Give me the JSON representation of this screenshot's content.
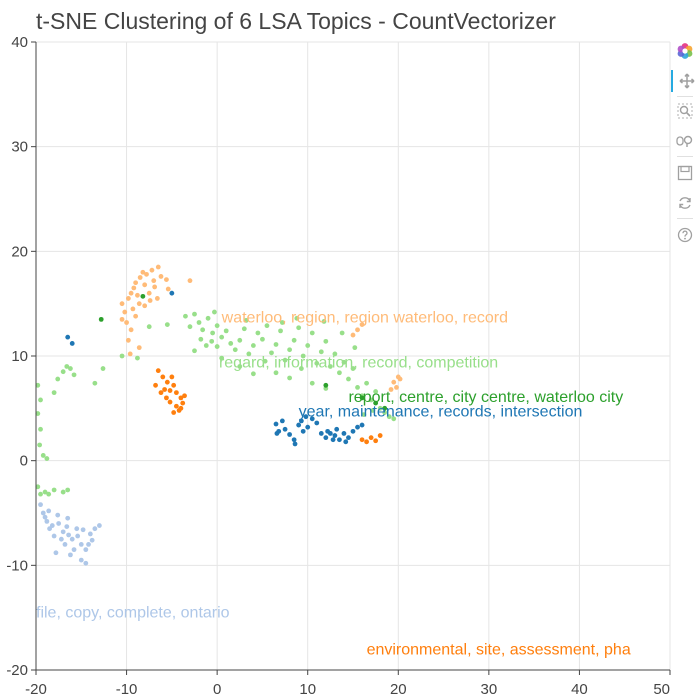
{
  "colors": {
    "orange": "#ff7f0e",
    "light_orange": "#ffbb78",
    "green": "#2ca02c",
    "light_green": "#98df8a",
    "blue": "#1f77b4",
    "light_blue": "#aec7e8",
    "grid": "#e5e5e5",
    "axis": "#444444"
  },
  "toolbar": {
    "logo": "bokeh-logo-icon",
    "tools": [
      "pan-icon",
      "box-zoom-icon",
      "wheel-zoom-icon",
      "save-icon",
      "reset-icon",
      "help-icon"
    ]
  },
  "chart_data": {
    "type": "scatter",
    "title": "t-SNE Clustering of 6 LSA Topics - CountVectorizer",
    "xlabel": "",
    "ylabel": "",
    "xlim": [
      -20,
      50
    ],
    "ylim": [
      -20,
      40
    ],
    "grid": true,
    "x_ticks": [
      "-20",
      "-10",
      "0",
      "10",
      "20",
      "30",
      "40",
      "50"
    ],
    "y_ticks": [
      "-20",
      "-10",
      "0",
      "10",
      "20",
      "30",
      "40"
    ],
    "annotations": [
      {
        "text": "waterloo, region, region waterloo, record",
        "x": 0.5,
        "y": 13.2,
        "color": "#ffbb78"
      },
      {
        "text": "regard, information, record, competition",
        "x": 0.2,
        "y": 8.9,
        "color": "#98df8a"
      },
      {
        "text": "report, centre, city centre, waterloo city",
        "x": 14.5,
        "y": 5.6,
        "color": "#2ca02c"
      },
      {
        "text": "year, maintenance, records, intersection",
        "x": 9.0,
        "y": 4.2,
        "color": "#1f77b4"
      },
      {
        "text": "file, copy, complete, ontario",
        "x": -20.0,
        "y": -15.0,
        "color": "#aec7e8"
      },
      {
        "text": "environmental, site, assessment, pha",
        "x": 16.5,
        "y": -18.5,
        "color": "#ff7f0e"
      }
    ],
    "series": [
      {
        "color": "#98df8a",
        "points": [
          [
            -19.8,
            7.2
          ],
          [
            -19.5,
            5.8
          ],
          [
            -19.8,
            4.5
          ],
          [
            -19.5,
            3.0
          ],
          [
            -19.2,
            0.5
          ],
          [
            -19.8,
            -2.5
          ],
          [
            -19.5,
            -3.2
          ],
          [
            -19.0,
            -3.0
          ],
          [
            -18.6,
            -3.2
          ],
          [
            -18.0,
            -2.8
          ],
          [
            -17.0,
            -3.0
          ],
          [
            -16.5,
            -2.8
          ],
          [
            -18.0,
            6.5
          ],
          [
            -17.6,
            7.8
          ],
          [
            -17.0,
            8.5
          ],
          [
            -16.6,
            9.0
          ],
          [
            -16.2,
            8.8
          ],
          [
            -15.8,
            8.2
          ],
          [
            -13.5,
            7.4
          ],
          [
            -12.6,
            8.8
          ],
          [
            -10.5,
            10.0
          ],
          [
            -8.8,
            9.8
          ],
          [
            -7.5,
            12.8
          ],
          [
            -5.5,
            13.0
          ],
          [
            -3.5,
            13.8
          ],
          [
            -3.0,
            12.8
          ],
          [
            -2.5,
            14.0
          ],
          [
            -2.0,
            13.2
          ],
          [
            -1.6,
            12.5
          ],
          [
            -1.0,
            13.6
          ],
          [
            -0.5,
            12.2
          ],
          [
            0.0,
            12.9
          ],
          [
            -1.8,
            11.6
          ],
          [
            -1.2,
            11.0
          ],
          [
            -0.6,
            11.4
          ],
          [
            0.0,
            10.9
          ],
          [
            0.5,
            11.8
          ],
          [
            1.0,
            12.4
          ],
          [
            1.5,
            11.2
          ],
          [
            2.0,
            10.6
          ],
          [
            2.5,
            11.5
          ],
          [
            3.0,
            12.6
          ],
          [
            3.5,
            10.2
          ],
          [
            4.0,
            11.0
          ],
          [
            4.5,
            12.2
          ],
          [
            5.0,
            11.6
          ],
          [
            5.5,
            12.9
          ],
          [
            6.0,
            10.3
          ],
          [
            6.5,
            11.1
          ],
          [
            7.0,
            12.4
          ],
          [
            7.5,
            9.6
          ],
          [
            8.0,
            10.6
          ],
          [
            8.5,
            11.5
          ],
          [
            9.0,
            12.7
          ],
          [
            9.5,
            10.0
          ],
          [
            10.0,
            11.0
          ],
          [
            10.5,
            12.2
          ],
          [
            11.0,
            9.3
          ],
          [
            11.5,
            10.4
          ],
          [
            12.0,
            11.4
          ],
          [
            12.5,
            9.0
          ],
          [
            13.0,
            10.2
          ],
          [
            13.5,
            8.4
          ],
          [
            14.0,
            9.4
          ],
          [
            14.5,
            7.8
          ],
          [
            15.0,
            8.8
          ],
          [
            15.5,
            7.0
          ],
          [
            16.0,
            6.2
          ],
          [
            16.5,
            7.4
          ],
          [
            17.0,
            5.8
          ],
          [
            17.5,
            6.6
          ],
          [
            18.0,
            5.0
          ],
          [
            18.5,
            4.6
          ],
          [
            19.0,
            4.2
          ],
          [
            19.5,
            4.0
          ],
          [
            16.2,
            4.4
          ],
          [
            17.2,
            4.8
          ],
          [
            6.5,
            8.4
          ],
          [
            8.0,
            7.9
          ],
          [
            10.5,
            7.4
          ],
          [
            12.0,
            6.9
          ],
          [
            2.5,
            9.0
          ],
          [
            4.0,
            8.3
          ],
          [
            0.5,
            9.8
          ],
          [
            -2.5,
            10.5
          ],
          [
            3.2,
            13.4
          ],
          [
            -0.3,
            14.2
          ],
          [
            8.8,
            13.6
          ],
          [
            11.8,
            13.3
          ],
          [
            13.8,
            12.2
          ],
          [
            15.2,
            10.8
          ],
          [
            9.3,
            8.8
          ],
          [
            5.3,
            9.5
          ],
          [
            7.2,
            13.2
          ],
          [
            -19.6,
            1.5
          ],
          [
            -18.8,
            0.2
          ]
        ]
      },
      {
        "color": "#ffbb78",
        "points": [
          [
            -10.2,
            14.2
          ],
          [
            -10.0,
            13.2
          ],
          [
            -9.8,
            15.5
          ],
          [
            -9.5,
            16.0
          ],
          [
            -9.2,
            16.5
          ],
          [
            -9.0,
            17.0
          ],
          [
            -8.8,
            15.8
          ],
          [
            -8.5,
            17.5
          ],
          [
            -8.2,
            18.0
          ],
          [
            -8.0,
            16.8
          ],
          [
            -7.8,
            17.8
          ],
          [
            -7.5,
            16.0
          ],
          [
            -7.2,
            18.2
          ],
          [
            -7.0,
            17.2
          ],
          [
            -6.6,
            15.5
          ],
          [
            -6.5,
            18.5
          ],
          [
            -9.5,
            12.5
          ],
          [
            -9.8,
            11.5
          ],
          [
            -9.3,
            14.5
          ],
          [
            -8.6,
            15.0
          ],
          [
            -7.4,
            15.3
          ],
          [
            -6.9,
            16.6
          ],
          [
            -6.2,
            17.6
          ],
          [
            -3.0,
            17.2
          ],
          [
            -8.0,
            14.8
          ],
          [
            -9.0,
            13.8
          ],
          [
            -10.5,
            15.0
          ],
          [
            -8.6,
            10.8
          ],
          [
            -9.6,
            10.2
          ],
          [
            -5.4,
            16.4
          ],
          [
            -5.6,
            17.3
          ],
          [
            -10.5,
            13.5
          ],
          [
            15.5,
            12.5
          ],
          [
            15.0,
            12.0
          ],
          [
            16.0,
            13.0
          ],
          [
            19.5,
            7.5
          ],
          [
            20.0,
            8.0
          ],
          [
            19.8,
            7.0
          ],
          [
            20.2,
            7.8
          ],
          [
            19.2,
            6.8
          ]
        ]
      },
      {
        "color": "#2ca02c",
        "points": [
          [
            -12.8,
            13.5
          ],
          [
            -8.2,
            15.7
          ],
          [
            12.0,
            7.2
          ],
          [
            16.0,
            6.0
          ],
          [
            17.5,
            5.5
          ],
          [
            18.5,
            5.0
          ]
        ]
      },
      {
        "color": "#ff7f0e",
        "points": [
          [
            -6.5,
            8.6
          ],
          [
            -6.0,
            8.0
          ],
          [
            -5.5,
            7.5
          ],
          [
            -5.0,
            8.0
          ],
          [
            -4.8,
            7.2
          ],
          [
            -6.8,
            7.2
          ],
          [
            -5.8,
            6.8
          ],
          [
            -4.5,
            6.5
          ],
          [
            -4.0,
            6.0
          ],
          [
            -5.2,
            5.6
          ],
          [
            -4.5,
            5.2
          ],
          [
            -4.2,
            4.8
          ],
          [
            -3.8,
            5.5
          ],
          [
            -3.6,
            6.2
          ],
          [
            -4.8,
            4.6
          ],
          [
            -5.6,
            6.0
          ],
          [
            -6.2,
            6.5
          ],
          [
            -5.2,
            6.7
          ],
          [
            -4.0,
            5.0
          ],
          [
            16.0,
            2.0
          ],
          [
            16.5,
            1.8
          ],
          [
            17.0,
            2.2
          ],
          [
            17.5,
            1.9
          ],
          [
            18.0,
            2.4
          ]
        ]
      },
      {
        "color": "#1f77b4",
        "points": [
          [
            -16.5,
            11.8
          ],
          [
            -16.0,
            11.2
          ],
          [
            -5.0,
            16.0
          ],
          [
            6.5,
            3.5
          ],
          [
            6.6,
            2.6
          ],
          [
            6.8,
            2.8
          ],
          [
            7.2,
            3.8
          ],
          [
            7.5,
            3.0
          ],
          [
            8.0,
            2.5
          ],
          [
            8.5,
            2.0
          ],
          [
            8.6,
            1.6
          ],
          [
            9.0,
            3.4
          ],
          [
            9.3,
            3.8
          ],
          [
            9.5,
            2.8
          ],
          [
            9.8,
            4.2
          ],
          [
            10.0,
            3.2
          ],
          [
            10.5,
            4.0
          ],
          [
            11.0,
            3.6
          ],
          [
            11.5,
            2.6
          ],
          [
            12.0,
            2.2
          ],
          [
            12.5,
            2.6
          ],
          [
            12.8,
            2.0
          ],
          [
            13.0,
            2.4
          ],
          [
            13.2,
            3.0
          ],
          [
            13.5,
            2.0
          ],
          [
            14.0,
            2.6
          ],
          [
            14.2,
            1.8
          ],
          [
            14.5,
            2.2
          ],
          [
            15.0,
            2.8
          ],
          [
            15.5,
            3.2
          ],
          [
            16.0,
            3.4
          ],
          [
            12.2,
            2.8
          ]
        ]
      },
      {
        "color": "#aec7e8",
        "points": [
          [
            -19.5,
            -4.2
          ],
          [
            -19.2,
            -5.0
          ],
          [
            -18.8,
            -5.8
          ],
          [
            -18.5,
            -6.5
          ],
          [
            -18.0,
            -7.2
          ],
          [
            -17.5,
            -6.0
          ],
          [
            -17.0,
            -6.8
          ],
          [
            -16.5,
            -5.5
          ],
          [
            -16.0,
            -7.5
          ],
          [
            -15.5,
            -6.5
          ],
          [
            -15.0,
            -8.0
          ],
          [
            -14.5,
            -8.5
          ],
          [
            -14.0,
            -7.0
          ],
          [
            -13.5,
            -6.5
          ],
          [
            -13.0,
            -6.2
          ],
          [
            -16.2,
            -9.0
          ],
          [
            -15.8,
            -8.5
          ],
          [
            -15.0,
            -9.5
          ],
          [
            -14.5,
            -9.8
          ],
          [
            -17.8,
            -8.8
          ],
          [
            -18.2,
            -6.2
          ],
          [
            -17.2,
            -7.5
          ],
          [
            -16.8,
            -8.0
          ],
          [
            -14.2,
            -8.0
          ],
          [
            -15.4,
            -7.2
          ],
          [
            -18.6,
            -4.8
          ],
          [
            -19.0,
            -5.4
          ],
          [
            -17.6,
            -5.2
          ],
          [
            -16.6,
            -6.3
          ],
          [
            -14.8,
            -6.6
          ],
          [
            -13.8,
            -7.6
          ],
          [
            -16.4,
            -7.1
          ]
        ]
      }
    ]
  }
}
